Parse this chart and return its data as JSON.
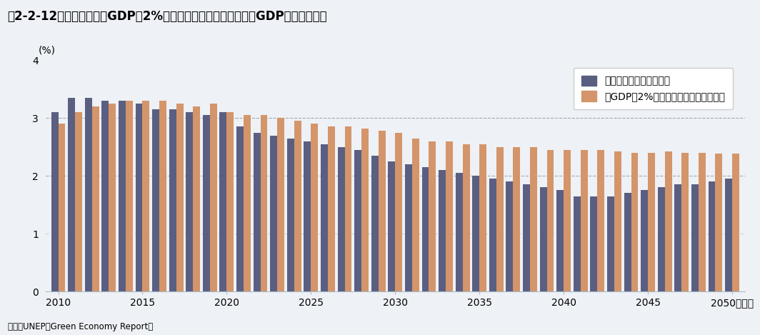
{
  "title": "図2-2-12　環境対策に年GDPの2%を投資した場合の世界全体のGDP成長率の予測",
  "ylabel": "(%)",
  "xlabel_suffix": "（年）",
  "source": "資料：UNEP「Green Economy Report」",
  "legend_bau": "現行の政策を続けた場合",
  "legend_green": "年GDPの2%を環境対策に投資した場合",
  "years": [
    2010,
    2011,
    2012,
    2013,
    2014,
    2015,
    2016,
    2017,
    2018,
    2019,
    2020,
    2021,
    2022,
    2023,
    2024,
    2025,
    2026,
    2027,
    2028,
    2029,
    2030,
    2031,
    2032,
    2033,
    2034,
    2035,
    2036,
    2037,
    2038,
    2039,
    2040,
    2041,
    2042,
    2043,
    2044,
    2045,
    2046,
    2047,
    2048,
    2049,
    2050
  ],
  "bau": [
    3.1,
    3.35,
    3.35,
    3.3,
    3.3,
    3.25,
    3.15,
    3.15,
    3.1,
    3.05,
    3.1,
    2.85,
    2.75,
    2.7,
    2.65,
    2.6,
    2.55,
    2.5,
    2.45,
    2.35,
    2.25,
    2.2,
    2.15,
    2.1,
    2.05,
    2.0,
    1.95,
    1.9,
    1.85,
    1.8,
    1.75,
    1.65,
    1.65,
    1.65,
    1.7,
    1.75,
    1.8,
    1.85,
    1.85,
    1.9,
    1.95
  ],
  "green": [
    2.9,
    3.1,
    3.2,
    3.25,
    3.3,
    3.3,
    3.3,
    3.25,
    3.2,
    3.25,
    3.1,
    3.05,
    3.05,
    3.0,
    2.95,
    2.9,
    2.85,
    2.85,
    2.82,
    2.78,
    2.75,
    2.65,
    2.6,
    2.6,
    2.55,
    2.55,
    2.5,
    2.5,
    2.5,
    2.45,
    2.45,
    2.45,
    2.45,
    2.42,
    2.4,
    2.4,
    2.42,
    2.4,
    2.4,
    2.38,
    2.38
  ],
  "color_bau": "#5a5f82",
  "color_green": "#d4956a",
  "background_color": "#eef1f5",
  "plot_bg_color": "#eef1f5",
  "ylim": [
    0,
    4
  ],
  "yticks": [
    0,
    1,
    2,
    3,
    4
  ],
  "xticks": [
    2010,
    2015,
    2020,
    2025,
    2030,
    2035,
    2040,
    2045,
    2050
  ],
  "grid_color_dashed": "#8899aa",
  "grid_color_dotted": "#aabbcc",
  "title_fontsize": 12,
  "axis_fontsize": 10,
  "legend_fontsize": 10
}
